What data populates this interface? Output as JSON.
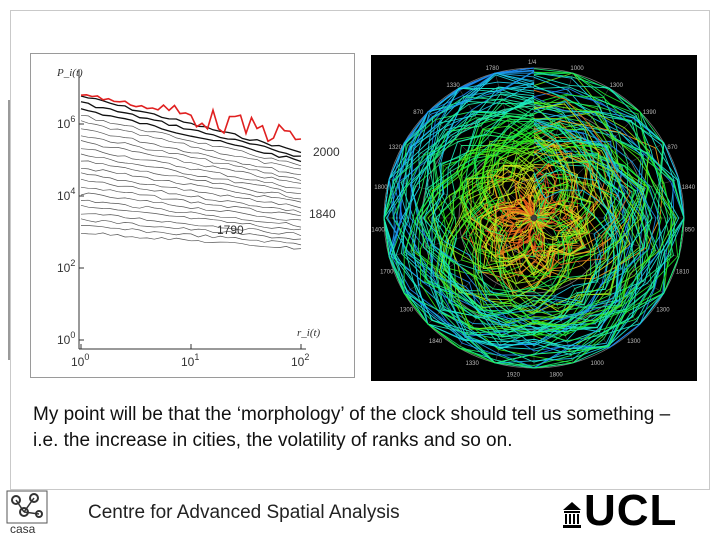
{
  "slide": {
    "caption": "My point will be that the ‘morphology’ of the clock should tell us something – i.e. the increase in cities, the volatility of ranks and so on."
  },
  "rank_size_plot": {
    "y_axis_label": "P_i(t)",
    "x_axis_label": "r_i(t)",
    "y_ticks": [
      "10^6",
      "10^4",
      "10^2",
      "10^0"
    ],
    "x_ticks": [
      "10^0",
      "10^1",
      "10^2"
    ],
    "annotations": [
      "2000",
      "1840",
      "1790"
    ],
    "line_color": "#333333",
    "highlight_color": "#e02020"
  },
  "rank_clock": {
    "ring_labels": [
      "1/4",
      "1000",
      "1300",
      "1390",
      "870",
      "1840",
      "850",
      "1810",
      "1300",
      "1300",
      "1000",
      "1800",
      "1920",
      "1330",
      "1840",
      "1300",
      "1700",
      "1400",
      "1800",
      "1320",
      "870",
      "1330",
      "1780"
    ],
    "background": "#000000"
  },
  "footer": {
    "title": "Centre for Advanced Spatial Analysis",
    "casa_label": "casa",
    "ucl_label": "UCL"
  }
}
